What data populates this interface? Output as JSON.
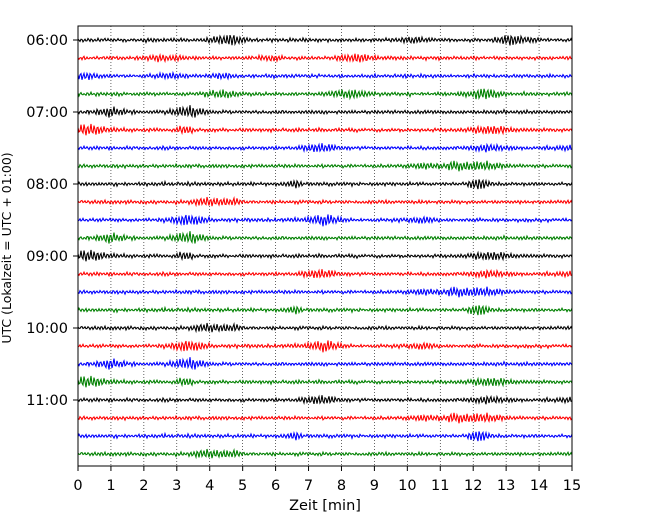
{
  "chart_data": {
    "type": "line",
    "title": "",
    "xlabel": "Zeit  [min]",
    "ylabel": "UTC (Lokalzeit = UTC + 01:00)",
    "xlim": [
      0,
      15
    ],
    "x_ticks": [
      0,
      1,
      2,
      3,
      4,
      5,
      6,
      7,
      8,
      9,
      10,
      11,
      12,
      13,
      14,
      15
    ],
    "x_tick_labels": [
      "0",
      "1",
      "2",
      "3",
      "4",
      "5",
      "6",
      "7",
      "8",
      "9",
      "10",
      "11",
      "12",
      "13",
      "14",
      "15"
    ],
    "y_tick_labels": [
      "06:00",
      "07:00",
      "08:00",
      "09:00",
      "10:00",
      "11:00"
    ],
    "grid": "vertical dotted at each minute",
    "trace_minutes": 15,
    "trace_count": 24,
    "colors": [
      "#000000",
      "#ff0000",
      "#0000ff",
      "#008000"
    ],
    "trace_start_times": [
      "06:00",
      "06:15",
      "06:30",
      "06:45",
      "07:00",
      "07:15",
      "07:30",
      "07:45",
      "08:00",
      "08:15",
      "08:30",
      "08:45",
      "09:00",
      "09:15",
      "09:30",
      "09:45",
      "10:00",
      "10:15",
      "10:30",
      "10:45",
      "11:00",
      "11:15",
      "11:30",
      "11:45"
    ]
  }
}
